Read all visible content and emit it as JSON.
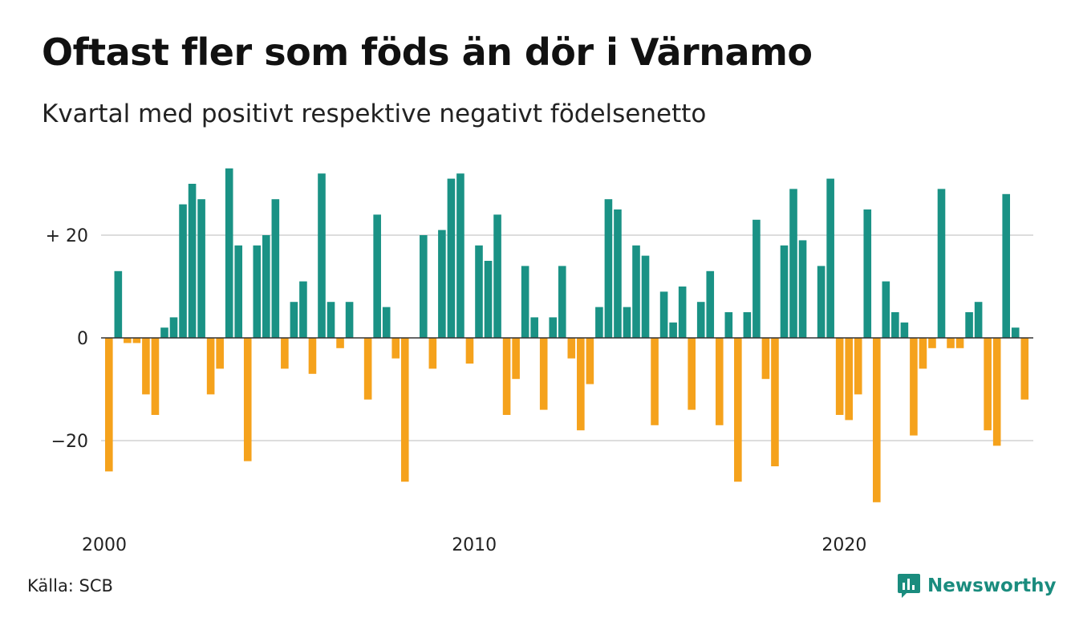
{
  "header": {
    "title": "Oftast fler som föds än dör i Värnamo",
    "subtitle": "Kvartal med positivt respektive negativt födelsenetto"
  },
  "footer": {
    "source": "Källa: SCB",
    "brand": "Newsworthy",
    "brand_icon": "newsworthy-logo-icon"
  },
  "colors": {
    "positive": "#1a9285",
    "negative": "#f5a21c",
    "grid": "#dddddd",
    "zero_line": "#333333",
    "brand": "#1a8c7e"
  },
  "chart_data": {
    "type": "bar",
    "x_start": "2000 Q1",
    "x_ticks": [
      "2000",
      "2010",
      "2020"
    ],
    "y_ticks": [
      "+ 20",
      "0",
      "−20"
    ],
    "y_tick_values": [
      20,
      0,
      -20
    ],
    "ylim": [
      -33,
      34
    ],
    "grid": true,
    "values": [
      -26,
      13,
      -1,
      -1,
      -11,
      -15,
      2,
      4,
      26,
      30,
      27,
      -11,
      -6,
      33,
      18,
      -24,
      18,
      20,
      27,
      -6,
      7,
      11,
      -7,
      32,
      7,
      -2,
      7,
      0,
      -12,
      24,
      6,
      -4,
      -28,
      0,
      20,
      -6,
      21,
      31,
      32,
      -5,
      18,
      15,
      24,
      -15,
      -8,
      14,
      4,
      -14,
      4,
      14,
      -4,
      -18,
      -9,
      6,
      27,
      25,
      6,
      18,
      16,
      -17,
      9,
      3,
      10,
      -14,
      7,
      13,
      -17,
      5,
      -28,
      5,
      23,
      -8,
      -25,
      18,
      29,
      19,
      0,
      14,
      31,
      -15,
      -16,
      -11,
      25,
      -32,
      11,
      5,
      3,
      -19,
      -6,
      -2,
      29,
      -2,
      -2,
      5,
      7,
      -18,
      -21,
      28,
      2,
      -12
    ]
  }
}
